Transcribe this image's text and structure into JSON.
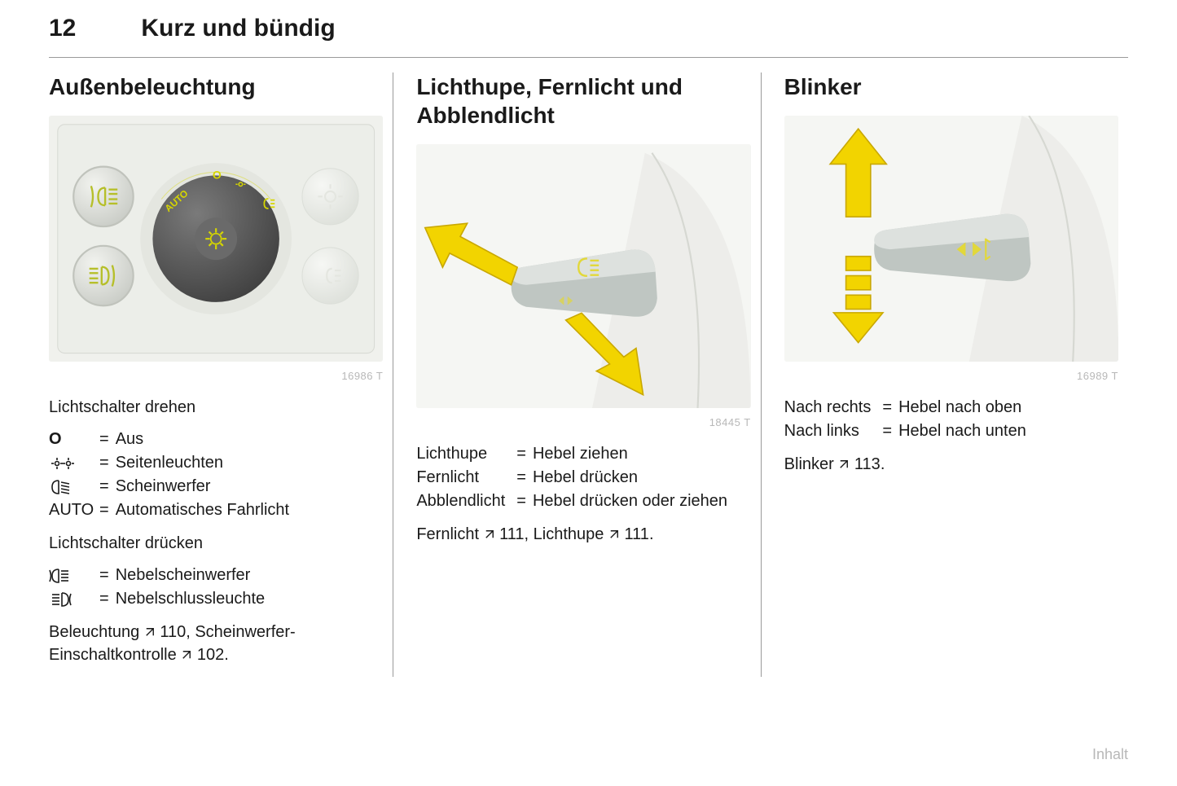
{
  "page": {
    "number": "12",
    "chapter": "Kurz und bündig",
    "footer": "Inhalt"
  },
  "col1": {
    "heading": "Außenbeleuchtung",
    "fig_caption": "16986 T",
    "intro1": "Lichtschalter drehen",
    "table1": [
      {
        "sym_type": "text",
        "sym": "O",
        "sym_bold": true,
        "val": "Aus"
      },
      {
        "sym_type": "parking",
        "val": "Seitenleuchten"
      },
      {
        "sym_type": "headlamp",
        "val": "Scheinwerfer"
      },
      {
        "sym_type": "text",
        "sym": "AUTO",
        "val": "Automatisches Fahrlicht"
      }
    ],
    "intro2": "Lichtschalter drücken",
    "table2": [
      {
        "sym_type": "front-fog",
        "val": "Nebelscheinwerfer"
      },
      {
        "sym_type": "rear-fog",
        "val": "Nebelschlussleuchte"
      }
    ],
    "footnote_pre1": "Beleuchtung ",
    "footnote_ref1": "110",
    "footnote_mid": ", Scheinwerfer-Einschaltkontrolle ",
    "footnote_ref2": "102",
    "footnote_end": "."
  },
  "col2": {
    "heading": "Lichthupe, Fernlicht und Abblendlicht",
    "fig_caption": "18445 T",
    "table": [
      {
        "term": "Lichthupe",
        "val": "Hebel ziehen"
      },
      {
        "term": "Fernlicht",
        "val": "Hebel drücken"
      },
      {
        "term": "Abblendlicht",
        "val": "Hebel drücken oder ziehen"
      }
    ],
    "footnote_pre1": "Fernlicht ",
    "footnote_ref1": "111",
    "footnote_mid": ", Lichthupe ",
    "footnote_ref2": "111",
    "footnote_end": "."
  },
  "col3": {
    "heading": "Blinker",
    "fig_caption": "16989 T",
    "table": [
      {
        "term": "Nach rechts",
        "val": "Hebel nach oben"
      },
      {
        "term": "Nach links",
        "val": "Hebel nach unten"
      }
    ],
    "footnote_pre1": "Blinker ",
    "footnote_ref1": "113",
    "footnote_end": "."
  },
  "colors": {
    "text": "#1a1a1a",
    "rule": "#9a9a9a",
    "caption": "#b8b8b8",
    "figure_bg": "#f4f4f2",
    "arrow_fill": "#f2d400",
    "arrow_stroke": "#c9a800",
    "dial_dark": "#585858",
    "dial_marks": "#d6d600",
    "button_face": "#d9dcd6",
    "button_icon": "#b6bf2a",
    "lever_face": "#bfc6c2",
    "lever_top": "#dde1de",
    "lever_icon": "#e2d83a"
  }
}
